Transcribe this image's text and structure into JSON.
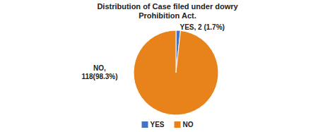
{
  "chart_data": {
    "type": "pie",
    "title": "Distribution of Case filed under dowry\nProhibition Act.",
    "categories": [
      "YES",
      "NO"
    ],
    "values": [
      1.7,
      98.3
    ],
    "value_labels": [
      "YES, 2 (1.7%)",
      "NO,\n118(98.3%)"
    ],
    "colors": [
      "#4472c4",
      "#e8821a"
    ],
    "data_labels": true,
    "legend": "bottom"
  }
}
